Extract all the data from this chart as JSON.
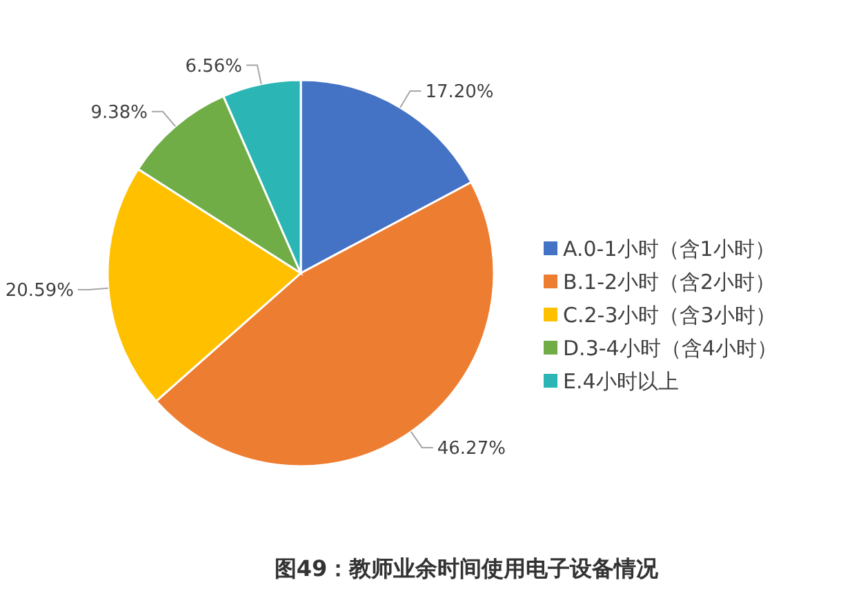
{
  "chart_data": {
    "type": "pie",
    "title": "图49：教师业余时间使用电子设备情况",
    "categories": [
      "A.0-1小时（含1小时）",
      "B.1-2小时（含2小时）",
      "C.2-3小时（含3小时）",
      "D.3-4小时（含4小时）",
      "E.4小时以上"
    ],
    "values": [
      17.2,
      46.27,
      20.59,
      9.38,
      6.56
    ],
    "value_labels": [
      "17.20%",
      "46.27%",
      "20.59%",
      "9.38%",
      "6.56%"
    ],
    "colors": [
      "#4472c4",
      "#ed7d31",
      "#ffc000",
      "#70ad47",
      "#2bb5b5"
    ],
    "legend": "right"
  }
}
